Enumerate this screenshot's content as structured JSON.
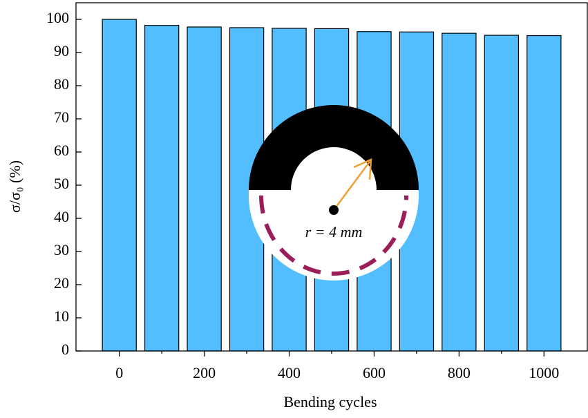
{
  "chart_data": {
    "type": "bar",
    "xlabel": "Bending cycles",
    "ylabel": "σ/σ₀ (%)",
    "annotation": "r = 4 mm",
    "x": [
      0,
      100,
      200,
      300,
      400,
      500,
      600,
      700,
      800,
      900,
      1000
    ],
    "values": [
      100,
      98.2,
      97.7,
      97.5,
      97.3,
      97.2,
      96.3,
      96.2,
      95.8,
      95.2,
      95.1
    ],
    "color": "#52bdff",
    "xlim": [
      -102,
      1102
    ],
    "ylim": [
      0,
      105
    ],
    "xticks": [
      0,
      200,
      400,
      600,
      800,
      1000
    ],
    "xminorticks": [
      100,
      300,
      500,
      700,
      900
    ],
    "yticks": [
      0,
      10,
      20,
      30,
      40,
      50,
      60,
      70,
      80,
      90,
      100
    ]
  }
}
